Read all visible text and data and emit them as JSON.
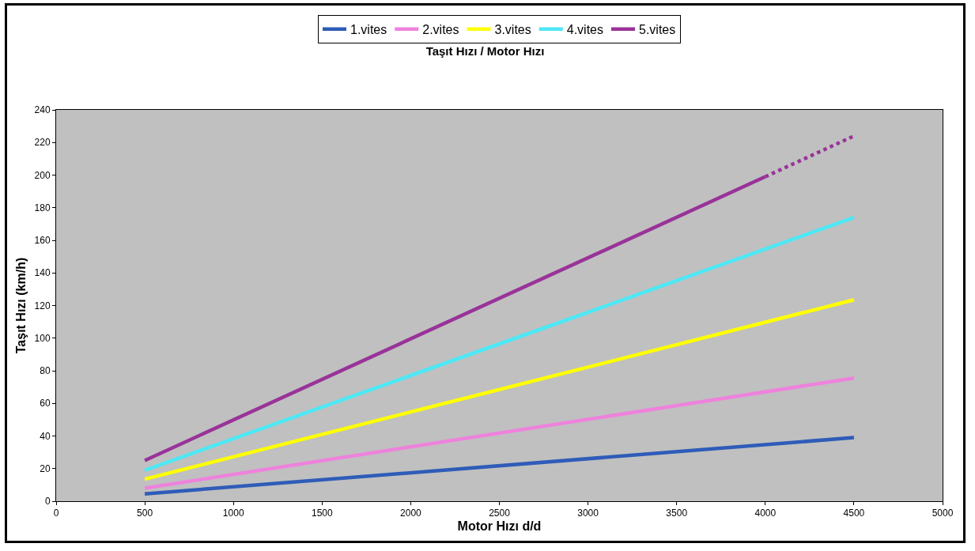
{
  "chart_data": {
    "type": "line",
    "title": "Taşıt Hızı / Motor Hızı",
    "xlabel": "Motor Hızı d/d",
    "ylabel": "Taşıt Hızı (km/h)",
    "xlim": [
      0,
      5000
    ],
    "xticks": [
      0,
      500,
      1000,
      1500,
      2000,
      2500,
      3000,
      3500,
      4000,
      4500,
      5000
    ],
    "ylim": [
      0,
      240
    ],
    "yticks": [
      0,
      20,
      40,
      60,
      80,
      100,
      120,
      140,
      160,
      180,
      200,
      220,
      240
    ],
    "grid": false,
    "legend": "top",
    "marker": "none",
    "line_style": "solid",
    "series": [
      {
        "name": "1.vites",
        "color": "#2e5cb8",
        "x": [
          500,
          4500
        ],
        "values": [
          4.5,
          39
        ]
      },
      {
        "name": "2.vites",
        "color": "#ee82dd",
        "x": [
          500,
          4500
        ],
        "values": [
          8,
          75.5
        ]
      },
      {
        "name": "3.vites",
        "color": "#ffff00",
        "x": [
          500,
          4500
        ],
        "values": [
          13.5,
          123.5
        ]
      },
      {
        "name": "4.vites",
        "color": "#4de8f5",
        "x": [
          500,
          4500
        ],
        "values": [
          19,
          174
        ]
      },
      {
        "name": "5.vites",
        "color": "#993399",
        "x": [
          500,
          4000
        ],
        "values": [
          25,
          199
        ]
      },
      {
        "color": "#993399",
        "x": [
          4000,
          4500
        ],
        "values": [
          199,
          224
        ],
        "line_style": "dotted"
      }
    ]
  }
}
